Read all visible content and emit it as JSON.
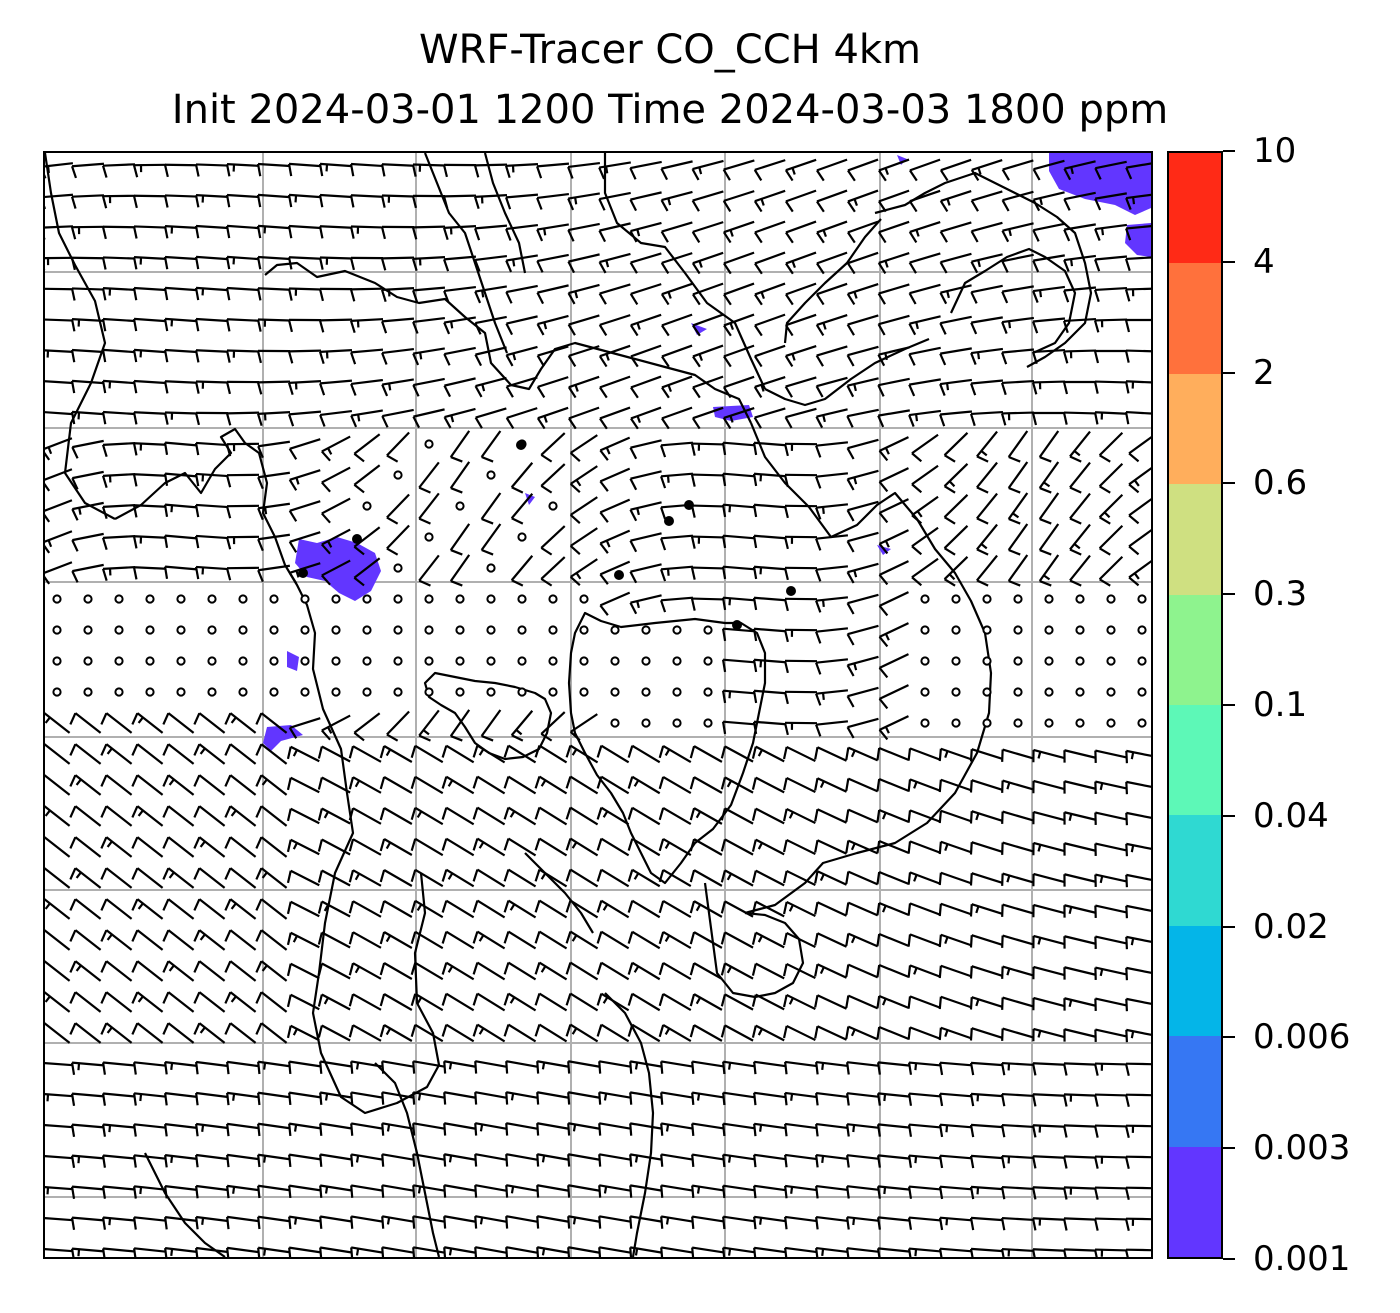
{
  "title": {
    "line1": "WRF-Tracer CO_CCH 4km",
    "line2": "Init 2024-03-01 1200 Time 2024-03-03 1800 ppm"
  },
  "colorbar": {
    "levels": [
      "0.001",
      "0.003",
      "0.006",
      "0.02",
      "0.04",
      "0.1",
      "0.3",
      "0.6",
      "2",
      "4",
      "10"
    ],
    "colors": [
      "#6236ff",
      "#3677f3",
      "#04b5e8",
      "#2fd9d2",
      "#5df8b7",
      "#8ef38e",
      "#cfe081",
      "#ffae5c",
      "#ff713c",
      "#ff2a16"
    ]
  },
  "map": {
    "gridlines": "on",
    "gridline_color": "#b0b0b0",
    "tracer_color": "#6236ff",
    "symbols": [
      "wind-barbs",
      "calm-circles",
      "city-dots",
      "coastlines"
    ]
  }
}
